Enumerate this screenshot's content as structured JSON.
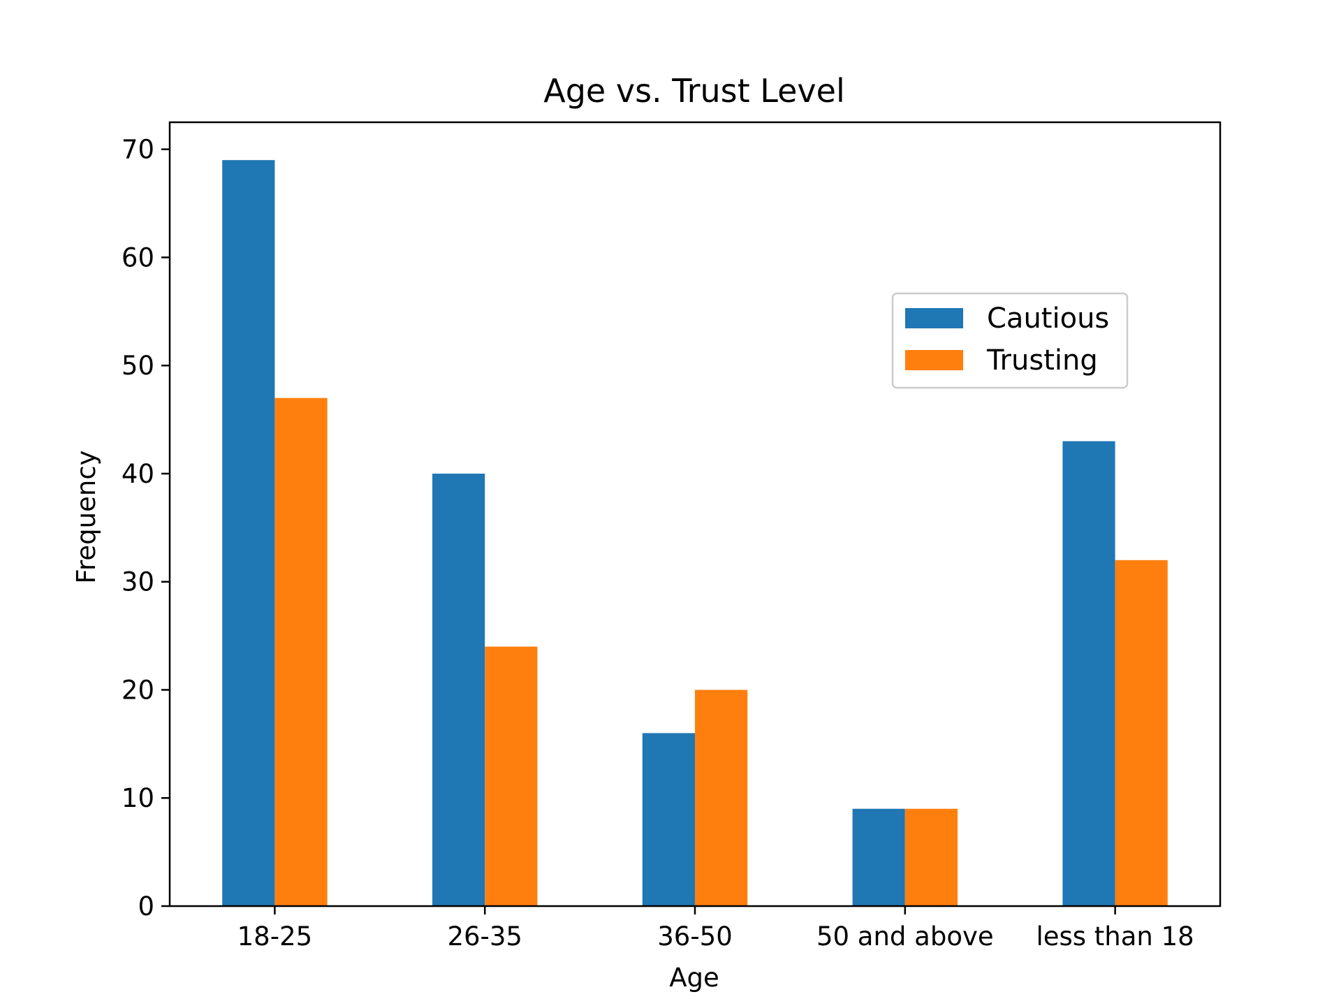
{
  "chart_data": {
    "type": "bar",
    "title": "Age vs. Trust Level",
    "xlabel": "Age",
    "ylabel": "Frequency",
    "categories": [
      "18-25",
      "26-35",
      "36-50",
      "50 and above",
      "less than 18"
    ],
    "series": [
      {
        "name": "Cautious",
        "values": [
          69,
          40,
          16,
          9,
          43
        ],
        "color": "#1f77b4"
      },
      {
        "name": "Trusting",
        "values": [
          47,
          24,
          20,
          9,
          32
        ],
        "color": "#ff7f0e"
      }
    ],
    "ylim": [
      0,
      72.5
    ],
    "yticks": [
      0,
      10,
      20,
      30,
      40,
      50,
      60,
      70
    ],
    "grid": false,
    "legend_position": "upper right"
  }
}
